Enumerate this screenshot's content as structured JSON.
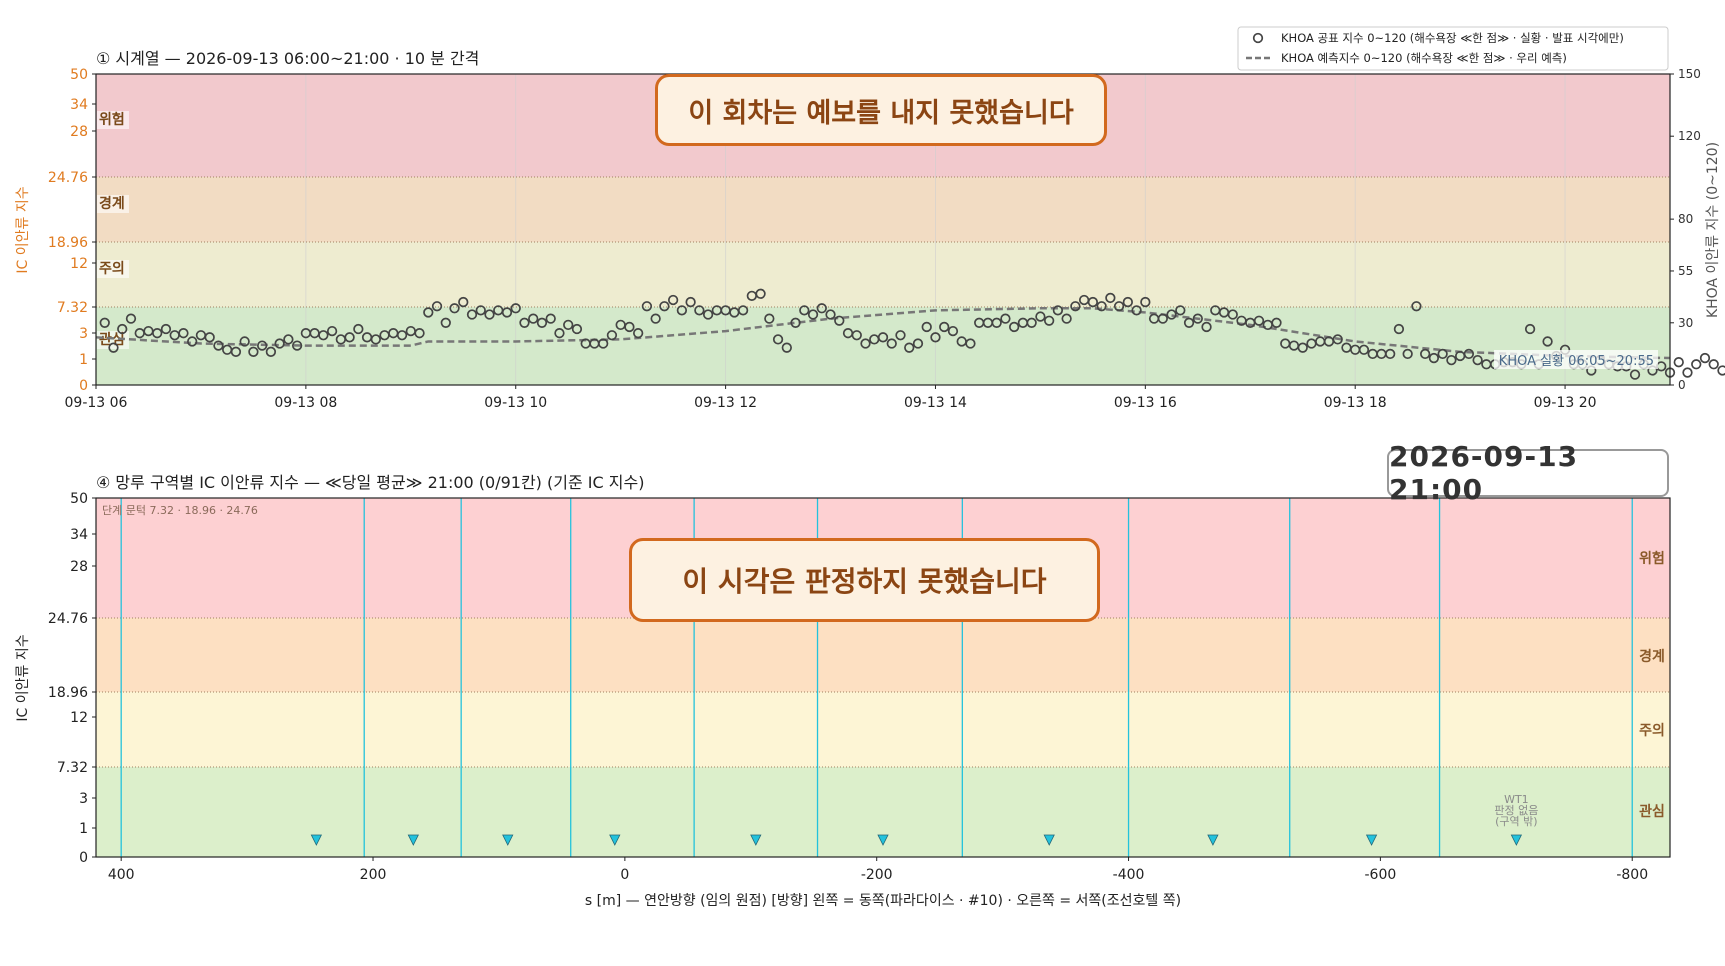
{
  "colors": {
    "danger": "#f2c9cd",
    "warning": "#f2dcc3",
    "caution": "#eeecd0",
    "interest": "#d4e9cb",
    "danger2": "#fdd0d2",
    "warning2": "#fde0c2",
    "caution2": "#fdf5d5",
    "interest2": "#dcefcb",
    "left_axis_text": "#e07b20",
    "marker": "#444444",
    "forecast_line": "#777777",
    "zone_line": "#23c2dc"
  },
  "chart_data": [
    {
      "type": "scatter",
      "title": "① 시계열 — 2026-09-13 06:00~21:00 · 10 분 간격",
      "ylabel": "IC 이안류 지수",
      "ylabel_right": "KHOA 이안류 지수 (0~120)",
      "x_start": "09-13 06:00",
      "x_end": "09-13 21:00",
      "x_step_minutes": 10,
      "xtick_labels": [
        "09-13 06",
        "09-13 08",
        "09-13 10",
        "09-13 12",
        "09-13 14",
        "09-13 16",
        "09-13 18",
        "09-13 20"
      ],
      "y_ticks": [
        0,
        1,
        3,
        7.32,
        12,
        18.96,
        24.76,
        28,
        34,
        50
      ],
      "y_right_ticks": [
        0,
        30,
        55,
        80,
        120,
        150
      ],
      "bands": [
        {
          "label": "관심",
          "from": 0,
          "to": 7.32
        },
        {
          "label": "주의",
          "from": 7.32,
          "to": 18.96
        },
        {
          "label": "경계",
          "from": 18.96,
          "to": 24.76
        },
        {
          "label": "위험",
          "from": 24.76,
          "to": 50
        }
      ],
      "legend": {
        "placement": "top-right",
        "entries": [
          "KHOA 공표 지수 0~120 (해수욕장 ≪한 점≫ · 실황 · 발표 시각에만)",
          "KHOA 예측지수 0~120 (해수욕장 ≪한 점≫ · 우리 예측)"
        ]
      },
      "overlay_message": "이 회차는 예보를 내지 못했습니다",
      "annotation": "KHOA 실황 06:05~20:55",
      "series": [
        {
          "name": "KHOA 공표 지수 0~120 (해수욕장 ≪한 점≫ · 실황 · 발표 시각에만)",
          "x_start": "09-13 06:05",
          "step_minutes": 5,
          "values": [
            30,
            18,
            27,
            32,
            25,
            26,
            25,
            27,
            24,
            25,
            21,
            24,
            23,
            19,
            17,
            16,
            21,
            16,
            19,
            16,
            20,
            22,
            19,
            25,
            25,
            24,
            26,
            22,
            23,
            27,
            23,
            22,
            24,
            25,
            24,
            26,
            25,
            35,
            38,
            30,
            37,
            40,
            34,
            36,
            34,
            36,
            35,
            37,
            30,
            32,
            30,
            32,
            25,
            29,
            27,
            20,
            20,
            20,
            24,
            29,
            28,
            25,
            38,
            32,
            38,
            41,
            36,
            40,
            36,
            34,
            36,
            36,
            35,
            36,
            43,
            44,
            32,
            22,
            18,
            30,
            36,
            34,
            37,
            34,
            31,
            25,
            24,
            20,
            22,
            23,
            20,
            24,
            18,
            20,
            28,
            23,
            28,
            26,
            21,
            20,
            30,
            30,
            30,
            32,
            28,
            30,
            30,
            33,
            31,
            36,
            32,
            38,
            41,
            40,
            38,
            42,
            38,
            40,
            36,
            40,
            32,
            32,
            34,
            36,
            30,
            32,
            28,
            36,
            35,
            34,
            31,
            30,
            31,
            29,
            30,
            20,
            19,
            18,
            20,
            21,
            21,
            22,
            18,
            17,
            17,
            15,
            15,
            15,
            27,
            15,
            38,
            15,
            13,
            15,
            12,
            14,
            15,
            12,
            10,
            10,
            11,
            11,
            10,
            27,
            10,
            21,
            14,
            17,
            10,
            10,
            7,
            12,
            10,
            9,
            9,
            5,
            10,
            7,
            9,
            6,
            11,
            6,
            10,
            13,
            10,
            7,
            11,
            7,
            8
          ]
        },
        {
          "name": "KHOA 예측지수 0~120 (해수욕장 ≪한 점≫ · 우리 예측)",
          "type": "line",
          "style": "dashed",
          "x": [
            "06:00",
            "07:00",
            "08:00",
            "09:00",
            "09:10",
            "10:00",
            "11:00",
            "12:00",
            "13:00",
            "14:00",
            "15:00",
            "15:30",
            "16:00",
            "17:00",
            "18:00",
            "19:00",
            "20:00",
            "21:00"
          ],
          "values": [
            23,
            20,
            19,
            19,
            21,
            21,
            22,
            26,
            32,
            36,
            37,
            37,
            35,
            29,
            21,
            16,
            14,
            13
          ]
        }
      ]
    },
    {
      "type": "bar",
      "title": "④ 망루 구역별 IC 이안류 지수 — ≪당일 평균≫ 21:00  (0/91칸)   (기준 IC 지수)",
      "xlabel": "s [m] — 연안방향 (임의 원점)     [방향] 왼쪽 = 동쪽(파라다이스 · #10) · 오른쪽 = 서쪽(조선호텔 쪽)",
      "ylabel": "IC 이안류 지수",
      "xlim": [
        420,
        -830
      ],
      "xtick_labels": [
        "400",
        "200",
        "0",
        "-200",
        "-400",
        "-600",
        "-800"
      ],
      "xticks": [
        400,
        200,
        0,
        -200,
        -400,
        -600,
        -800
      ],
      "y_ticks": [
        0,
        1,
        3,
        7.32,
        12,
        18.96,
        24.76,
        28,
        34,
        50
      ],
      "bands": [
        {
          "label": "관심",
          "from": 0,
          "to": 7.32
        },
        {
          "label": "주의",
          "from": 7.32,
          "to": 18.96
        },
        {
          "label": "경계",
          "from": 18.96,
          "to": 24.76
        },
        {
          "label": "위험",
          "from": 24.76,
          "to": 50
        }
      ],
      "threshold_note": "단계 문턱 7.32 · 18.96 · 24.76",
      "zone_boundaries": [
        400,
        207,
        130,
        43,
        -55,
        -153,
        -268,
        -400,
        -528,
        -647,
        -800
      ],
      "tower_markers": [
        245,
        168,
        93,
        8,
        -104,
        -205,
        -337,
        -467,
        -593,
        -708
      ],
      "wt1_label": [
        "WT1",
        "판정 없음",
        "(구역 밖)"
      ],
      "wt1_x": -708,
      "overlay_message": "이 시각은 판정하지 못했습니다"
    }
  ],
  "stamp": "2026-09-13  21:00"
}
